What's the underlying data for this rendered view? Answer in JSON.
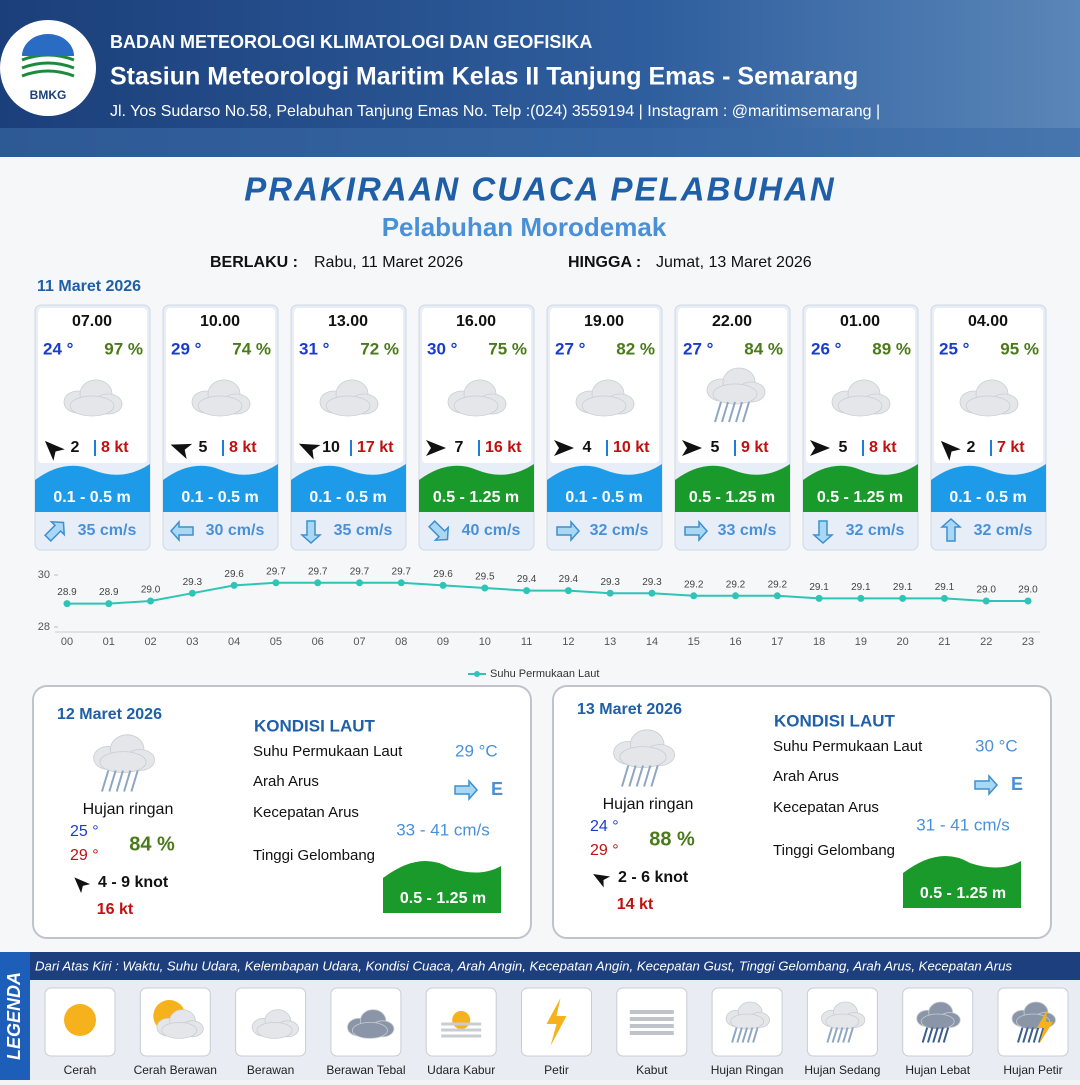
{
  "header": {
    "org": "BADAN METEOROLOGI KLIMATOLOGI DAN GEOFISIKA",
    "station": "Stasiun Meteorologi Maritim Kelas II Tanjung Emas - Semarang",
    "address": "Jl. Yos Sudarso No.58, Pelabuhan Tanjung Emas No. Telp :(024) 3559194 | Instagram : @maritimsemarang |",
    "logo": "BMKG"
  },
  "title": "PRAKIRAAN CUACA PELABUHAN",
  "subtitle": "Pelabuhan Morodemak",
  "validity": {
    "from_label": "BERLAKU :",
    "from": "Rabu, 11 Maret 2026",
    "to_label": "HINGGA :",
    "to": "Jumat, 13 Maret 2026"
  },
  "today": "11 Maret 2026",
  "cards": [
    {
      "time": "07.00",
      "temp": "24 °",
      "humidity": "97 %",
      "wind": "2",
      "gust": "8 kt",
      "wave": "0.1 - 0.5 m",
      "current": "35 cm/s"
    },
    {
      "time": "10.00",
      "temp": "29 °",
      "humidity": "74 %",
      "wind": "5",
      "gust": "8 kt",
      "wave": "0.1 - 0.5 m",
      "current": "30 cm/s"
    },
    {
      "time": "13.00",
      "temp": "31 °",
      "humidity": "72 %",
      "wind": "10",
      "gust": "17 kt",
      "wave": "0.1 - 0.5 m",
      "current": "35 cm/s"
    },
    {
      "time": "16.00",
      "temp": "30 °",
      "humidity": "75 %",
      "wind": "7",
      "gust": "16 kt",
      "wave": "0.5 - 1.25 m",
      "current": "40 cm/s"
    },
    {
      "time": "19.00",
      "temp": "27 °",
      "humidity": "82 %",
      "wind": "4",
      "gust": "10 kt",
      "wave": "0.1 - 0.5 m",
      "current": "32 cm/s"
    },
    {
      "time": "22.00",
      "temp": "27 °",
      "humidity": "84 %",
      "wind": "5",
      "gust": "9 kt",
      "wave": "0.5 - 1.25 m",
      "current": "33 cm/s"
    },
    {
      "time": "01.00",
      "temp": "26 °",
      "humidity": "89 %",
      "wind": "5",
      "gust": "8 kt",
      "wave": "0.5 - 1.25 m",
      "current": "32 cm/s"
    },
    {
      "time": "04.00",
      "temp": "25 °",
      "humidity": "95 %",
      "wind": "2",
      "gust": "7 kt",
      "wave": "0.1 - 0.5 m",
      "current": "32 cm/s"
    }
  ],
  "chart_data": {
    "type": "line",
    "categories": [
      "00",
      "01",
      "02",
      "03",
      "04",
      "05",
      "06",
      "07",
      "08",
      "09",
      "10",
      "11",
      "12",
      "13",
      "14",
      "15",
      "16",
      "17",
      "18",
      "19",
      "20",
      "21",
      "22",
      "23"
    ],
    "series": [
      {
        "name": "Suhu Permukaan Laut",
        "color": "#2ec4b6",
        "values": [
          28.9,
          28.9,
          29.0,
          29.3,
          29.6,
          29.7,
          29.7,
          29.7,
          29.7,
          29.6,
          29.5,
          29.4,
          29.4,
          29.3,
          29.3,
          29.2,
          29.2,
          29.2,
          29.1,
          29.1,
          29.1,
          29.1,
          29.0,
          29.0
        ],
        "value_labels": [
          "28.9",
          "28.9",
          "29.0",
          "29.3",
          "29.6",
          "29.7",
          "29.7",
          "29.7",
          "29.7",
          "29.6",
          "29.5",
          "29.4",
          "29.4",
          "29.3",
          "29.3",
          "29.2",
          "29.2",
          "29.2",
          "29.1",
          "29.1",
          "29.1",
          "29.1",
          "29.0",
          "29.0"
        ]
      }
    ],
    "ylim": [
      28,
      30
    ],
    "yticks": [
      28,
      30
    ],
    "legend": "bottom"
  },
  "daily": [
    {
      "date": "12 Maret 2026",
      "condition": "Hujan ringan",
      "temp_min": "25 °",
      "temp_max": "29 °",
      "humidity": "84 %",
      "wind": "4  - 9 knot",
      "gust": "16 kt",
      "sea_title": "KONDISI LAUT",
      "sst_label": "Suhu Permukaan Laut",
      "sst": "29 °C",
      "current_dir_label": "Arah Arus",
      "current_dir": "E",
      "current_speed_label": "Kecepatan Arus",
      "current_speed": "33 - 41 cm/s",
      "wave_label": "Tinggi Gelombang",
      "wave": "0.5 - 1.25 m"
    },
    {
      "date": "13 Maret 2026",
      "condition": "Hujan ringan",
      "temp_min": "24 °",
      "temp_max": "29 °",
      "humidity": "88 %",
      "wind": "2  - 6 knot",
      "gust": "14 kt",
      "sea_title": "KONDISI LAUT",
      "sst_label": "Suhu Permukaan Laut",
      "sst": "30 °C",
      "current_dir_label": "Arah Arus",
      "current_dir": "E",
      "current_speed_label": "Kecepatan Arus",
      "current_speed": "31 - 41 cm/s",
      "wave_label": "Tinggi Gelombang",
      "wave": "0.5 - 1.25 m"
    }
  ],
  "legend": {
    "title": "LEGENDA",
    "description": "Dari Atas Kiri : Waktu, Suhu Udara, Kelembapan Udara, Kondisi Cuaca, Arah Angin, Kecepatan Angin, Kecepatan Gust, Tinggi Gelombang, Arah Arus, Kecepatan Arus",
    "items": [
      "Cerah",
      "Cerah Berawan",
      "Berawan",
      "Berawan Tebal",
      "Udara Kabur",
      "Petir",
      "Kabut",
      "Hujan Ringan",
      "Hujan Sedang",
      "Hujan Lebat",
      "Hujan Petir"
    ]
  }
}
